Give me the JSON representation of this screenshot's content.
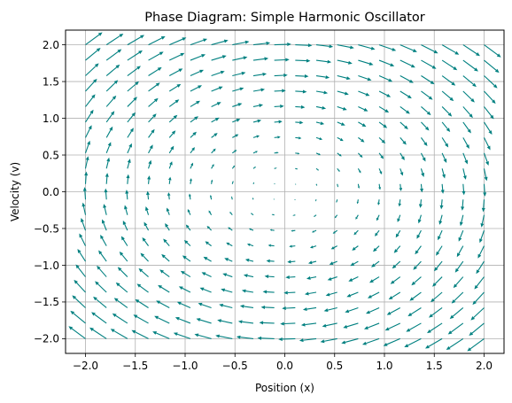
{
  "chart_data": {
    "type": "quiver",
    "title": "Phase Diagram: Simple Harmonic Oscillator",
    "xlabel": "Position (x)",
    "ylabel": "Velocity (v)",
    "xlim": [
      -2.2,
      2.2
    ],
    "ylim": [
      -2.2,
      2.2
    ],
    "xticks": [
      -2.0,
      -1.5,
      -1.0,
      -0.5,
      0.0,
      0.5,
      1.0,
      1.5,
      2.0
    ],
    "xtick_labels": [
      "−2.0",
      "−1.5",
      "−1.0",
      "−0.5",
      "0.0",
      "0.5",
      "1.0",
      "1.5",
      "2.0"
    ],
    "yticks": [
      -2.0,
      -1.5,
      -1.0,
      -0.5,
      0.0,
      0.5,
      1.0,
      1.5,
      2.0
    ],
    "ytick_labels": [
      "−2.0",
      "−1.5",
      "−1.0",
      "−0.5",
      "0.0",
      "0.5",
      "1.0",
      "1.5",
      "2.0"
    ],
    "grid": true,
    "field": {
      "x_range": [
        -2.0,
        2.0
      ],
      "y_range": [
        -2.0,
        2.0
      ],
      "samples_per_axis": 20,
      "dx_dt": "v",
      "dv_dt": "-x"
    },
    "color": "#008080"
  }
}
